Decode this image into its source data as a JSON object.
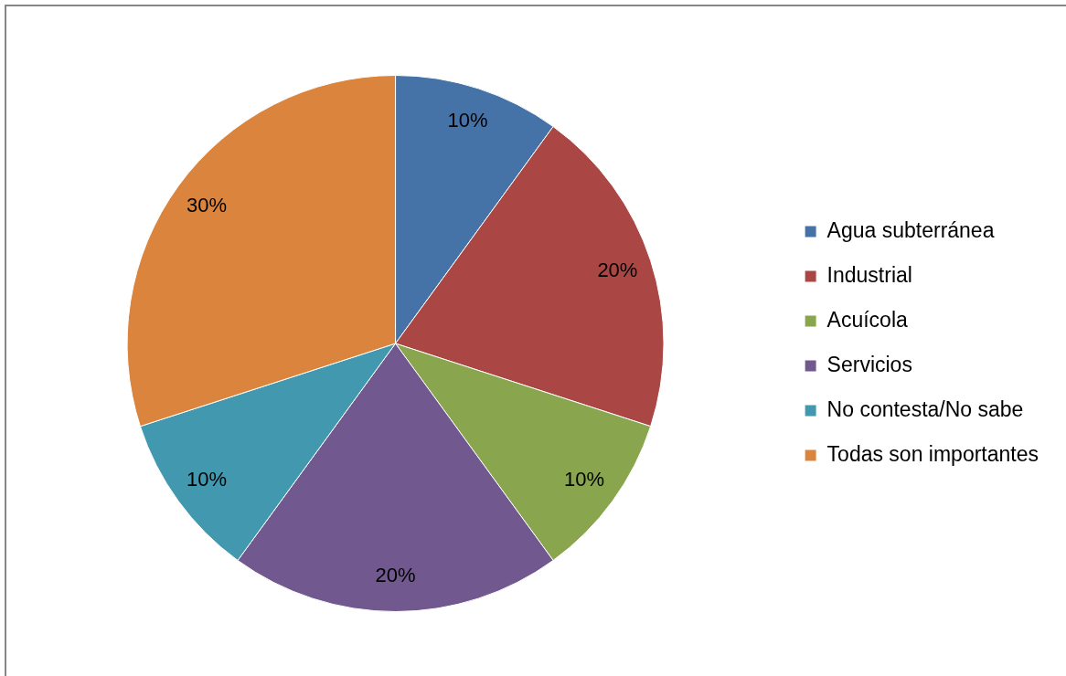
{
  "chart_data": {
    "type": "pie",
    "categories": [
      "Agua subterránea",
      "Industrial",
      "Acuícola",
      "Servicios",
      "No contesta/No sabe",
      "Todas son importantes"
    ],
    "values": [
      10,
      20,
      10,
      20,
      10,
      30
    ],
    "value_labels": [
      "10%",
      "20%",
      "10%",
      "20%",
      "10%",
      "30%"
    ],
    "colors": [
      "#4572a7",
      "#aa4643",
      "#89a54e",
      "#71588f",
      "#4198af",
      "#db843d"
    ],
    "legend": "right"
  }
}
